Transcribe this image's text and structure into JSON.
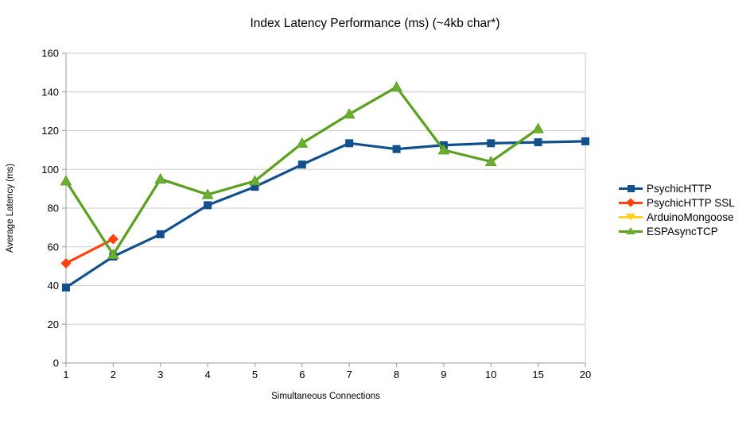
{
  "title": "Index Latency Performance (ms) (~4kb char*)",
  "colors": {
    "grid": "#cdcdcd",
    "axis": "#9b9b9b",
    "text": "#000000",
    "background": "#ffffff"
  },
  "chart_data": {
    "type": "line",
    "title": "Index Latency Performance (ms) (~4kb char*)",
    "xlabel": "Simultaneous Connections",
    "ylabel": "Average Latency (ms)",
    "categories": [
      "1",
      "2",
      "3",
      "4",
      "5",
      "6",
      "7",
      "8",
      "9",
      "10",
      "15",
      "20"
    ],
    "ylim": [
      0,
      160
    ],
    "ytick_step": 20,
    "grid": "horizontal-only",
    "legend_position": "right",
    "series": [
      {
        "name": "PsychicHTTP",
        "color": "#11508c",
        "marker_fill": "#11508c",
        "marker": "square",
        "values": [
          39,
          55,
          66.5,
          81.5,
          91,
          102.5,
          113.5,
          110.5,
          112.5,
          113.5,
          114,
          114.5
        ]
      },
      {
        "name": "PsychicHTTP SSL",
        "color": "#ff420e",
        "marker_fill": "#ff420e",
        "marker": "diamond",
        "values": [
          51.5,
          64,
          null,
          null,
          null,
          null,
          null,
          null,
          null,
          null,
          null,
          null
        ]
      },
      {
        "name": "ArduinoMongoose",
        "color": "#ffd320",
        "marker_fill": "#ffd320",
        "marker": "triangle-down",
        "values": [
          null,
          null,
          null,
          null,
          null,
          null,
          null,
          null,
          null,
          null,
          null,
          null
        ]
      },
      {
        "name": "ESPAsyncTCP",
        "color": "#5aa01e",
        "marker_fill": "#6cae33",
        "marker": "triangle-up",
        "values": [
          94,
          56,
          95,
          87,
          94,
          113.5,
          128.5,
          142.5,
          110,
          104,
          121,
          null
        ]
      }
    ]
  }
}
